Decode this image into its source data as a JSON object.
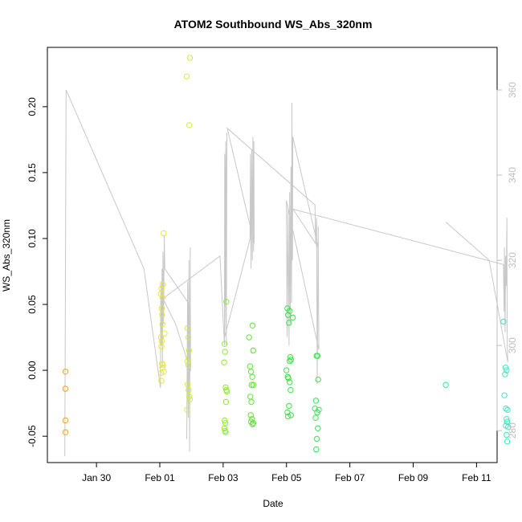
{
  "chart_data": {
    "type": "scatter",
    "title": "ATOM2 Southbound WS_Abs_320nm",
    "xlabel": "Date",
    "ylabel": "WS_Abs_320nm",
    "x_ticks": [
      "Jan 30",
      "Feb 01",
      "Feb 03",
      "Feb 05",
      "Feb 07",
      "Feb 09",
      "Feb 11"
    ],
    "x_tick_values": [
      30,
      32,
      34,
      36,
      38,
      40,
      42
    ],
    "xlim": [
      28.45,
      42.65
    ],
    "y_ticks": [
      -0.05,
      0.0,
      0.05,
      0.1,
      0.15,
      0.2
    ],
    "y_tick_labels": [
      "-0.05",
      "0.00",
      "0.05",
      "0.10",
      "0.15",
      "0.20"
    ],
    "ylim": [
      -0.07,
      0.245
    ],
    "y2_ticks": [
      280,
      300,
      320,
      340,
      360
    ],
    "y2_tick_labels": [
      "280",
      "300",
      "320",
      "340",
      "360"
    ],
    "y2lim": [
      272.5,
      370
    ],
    "grid": false,
    "legend": "none",
    "point_color_by_x": {
      "start": "#e8a03c",
      "mid": "#e6f03c",
      "mid2": "#3ce03c",
      "end": "#3ce8c0"
    },
    "line_color": "#c8c8c8",
    "points": [
      {
        "x": 29.02,
        "y": -0.001
      },
      {
        "x": 29.02,
        "y": -0.014
      },
      {
        "x": 29.02,
        "y": -0.038
      },
      {
        "x": 29.02,
        "y": -0.047
      },
      {
        "x": 32.03,
        "y": 0.058
      },
      {
        "x": 32.05,
        "y": 0.062
      },
      {
        "x": 32.06,
        "y": 0.047
      },
      {
        "x": 32.07,
        "y": 0.042
      },
      {
        "x": 32.08,
        "y": 0.035
      },
      {
        "x": 32.04,
        "y": 0.025
      },
      {
        "x": 32.05,
        "y": 0.018
      },
      {
        "x": 32.06,
        "y": 0.022
      },
      {
        "x": 32.07,
        "y": 0.005
      },
      {
        "x": 32.08,
        "y": 0.002
      },
      {
        "x": 32.04,
        "y": -0.002
      },
      {
        "x": 32.05,
        "y": -0.008
      },
      {
        "x": 32.1,
        "y": 0.065
      },
      {
        "x": 32.12,
        "y": 0.104
      },
      {
        "x": 32.09,
        "y": 0.055
      },
      {
        "x": 32.1,
        "y": 0.004
      },
      {
        "x": 32.15,
        "y": 0.028
      },
      {
        "x": 32.13,
        "y": -0.001
      },
      {
        "x": 32.85,
        "y": 0.223
      },
      {
        "x": 32.95,
        "y": 0.237
      },
      {
        "x": 32.93,
        "y": 0.186
      },
      {
        "x": 32.88,
        "y": 0.032
      },
      {
        "x": 32.9,
        "y": 0.025
      },
      {
        "x": 32.92,
        "y": 0.015
      },
      {
        "x": 32.87,
        "y": 0.007
      },
      {
        "x": 32.9,
        "y": 0.004
      },
      {
        "x": 32.88,
        "y": -0.011
      },
      {
        "x": 32.91,
        "y": -0.015
      },
      {
        "x": 32.93,
        "y": -0.02
      },
      {
        "x": 32.86,
        "y": -0.03
      },
      {
        "x": 32.95,
        "y": -0.022
      },
      {
        "x": 34.1,
        "y": 0.052
      },
      {
        "x": 34.05,
        "y": 0.02
      },
      {
        "x": 34.06,
        "y": 0.014
      },
      {
        "x": 34.03,
        "y": 0.006
      },
      {
        "x": 34.08,
        "y": -0.013
      },
      {
        "x": 34.1,
        "y": -0.015
      },
      {
        "x": 34.12,
        "y": -0.016
      },
      {
        "x": 34.09,
        "y": -0.024
      },
      {
        "x": 34.05,
        "y": -0.038
      },
      {
        "x": 34.07,
        "y": -0.04
      },
      {
        "x": 34.04,
        "y": -0.044
      },
      {
        "x": 34.06,
        "y": -0.046
      },
      {
        "x": 34.08,
        "y": -0.047
      },
      {
        "x": 34.82,
        "y": 0.025
      },
      {
        "x": 34.93,
        "y": 0.034
      },
      {
        "x": 34.95,
        "y": 0.015
      },
      {
        "x": 34.85,
        "y": 0.003
      },
      {
        "x": 34.88,
        "y": -0.001
      },
      {
        "x": 34.92,
        "y": -0.005
      },
      {
        "x": 34.96,
        "y": -0.011
      },
      {
        "x": 34.9,
        "y": -0.011
      },
      {
        "x": 34.86,
        "y": -0.02
      },
      {
        "x": 34.89,
        "y": -0.024
      },
      {
        "x": 34.87,
        "y": -0.034
      },
      {
        "x": 34.91,
        "y": -0.037
      },
      {
        "x": 34.88,
        "y": -0.039
      },
      {
        "x": 34.93,
        "y": -0.041
      },
      {
        "x": 34.95,
        "y": -0.04
      },
      {
        "x": 36.03,
        "y": 0.047
      },
      {
        "x": 36.1,
        "y": 0.045
      },
      {
        "x": 36.05,
        "y": 0.042
      },
      {
        "x": 36.2,
        "y": 0.04
      },
      {
        "x": 36.08,
        "y": 0.036
      },
      {
        "x": 36.12,
        "y": 0.01
      },
      {
        "x": 36.14,
        "y": 0.008
      },
      {
        "x": 36.1,
        "y": 0.007
      },
      {
        "x": 36.0,
        "y": 0.0
      },
      {
        "x": 36.04,
        "y": -0.005
      },
      {
        "x": 36.06,
        "y": -0.006
      },
      {
        "x": 36.1,
        "y": -0.009
      },
      {
        "x": 36.13,
        "y": -0.015
      },
      {
        "x": 36.08,
        "y": -0.027
      },
      {
        "x": 36.03,
        "y": -0.032
      },
      {
        "x": 36.05,
        "y": -0.035
      },
      {
        "x": 36.14,
        "y": -0.034
      },
      {
        "x": 36.95,
        "y": 0.011
      },
      {
        "x": 36.98,
        "y": 0.011
      },
      {
        "x": 37.0,
        "y": -0.007
      },
      {
        "x": 36.93,
        "y": -0.023
      },
      {
        "x": 36.9,
        "y": -0.029
      },
      {
        "x": 36.97,
        "y": -0.032
      },
      {
        "x": 37.02,
        "y": -0.03
      },
      {
        "x": 36.92,
        "y": -0.036
      },
      {
        "x": 36.99,
        "y": -0.044
      },
      {
        "x": 36.96,
        "y": -0.052
      },
      {
        "x": 36.94,
        "y": -0.06
      },
      {
        "x": 41.03,
        "y": -0.011
      },
      {
        "x": 42.85,
        "y": 0.037
      },
      {
        "x": 42.92,
        "y": 0.002
      },
      {
        "x": 42.95,
        "y": 0.0
      },
      {
        "x": 42.9,
        "y": -0.003
      },
      {
        "x": 42.88,
        "y": -0.019
      },
      {
        "x": 42.93,
        "y": -0.029
      },
      {
        "x": 42.98,
        "y": -0.03
      },
      {
        "x": 42.95,
        "y": -0.037
      },
      {
        "x": 42.97,
        "y": -0.039
      },
      {
        "x": 42.93,
        "y": -0.042
      },
      {
        "x": 43.0,
        "y": -0.043
      },
      {
        "x": 42.95,
        "y": -0.049
      },
      {
        "x": 42.97,
        "y": -0.054
      }
    ],
    "line_y2": [
      {
        "x": 29.0,
        "y": 274
      },
      {
        "x": 29.04,
        "y": 360
      },
      {
        "x": 31.5,
        "y": 318
      },
      {
        "x": 32.02,
        "y": 290
      },
      {
        "x": 32.03,
        "y": 315
      },
      {
        "x": 32.05,
        "y": 300
      },
      {
        "x": 32.07,
        "y": 318
      },
      {
        "x": 32.08,
        "y": 295
      },
      {
        "x": 32.1,
        "y": 322
      },
      {
        "x": 32.12,
        "y": 305
      },
      {
        "x": 32.14,
        "y": 326
      },
      {
        "x": 32.16,
        "y": 318
      },
      {
        "x": 32.9,
        "y": 310
      },
      {
        "x": 32.85,
        "y": 278
      },
      {
        "x": 32.88,
        "y": 315
      },
      {
        "x": 32.9,
        "y": 283
      },
      {
        "x": 32.92,
        "y": 320
      },
      {
        "x": 32.94,
        "y": 275
      },
      {
        "x": 32.96,
        "y": 323
      },
      {
        "x": 32.97,
        "y": 294
      },
      {
        "x": 32.5,
        "y": 305
      },
      {
        "x": 32.1,
        "y": 311
      },
      {
        "x": 33.9,
        "y": 321
      },
      {
        "x": 34.04,
        "y": 300
      },
      {
        "x": 34.05,
        "y": 345
      },
      {
        "x": 34.07,
        "y": 310
      },
      {
        "x": 34.08,
        "y": 348
      },
      {
        "x": 34.1,
        "y": 300
      },
      {
        "x": 34.12,
        "y": 350
      },
      {
        "x": 34.05,
        "y": 302
      },
      {
        "x": 34.85,
        "y": 325
      },
      {
        "x": 34.86,
        "y": 345
      },
      {
        "x": 34.88,
        "y": 318
      },
      {
        "x": 34.9,
        "y": 346
      },
      {
        "x": 34.92,
        "y": 320
      },
      {
        "x": 34.94,
        "y": 349
      },
      {
        "x": 34.96,
        "y": 322
      },
      {
        "x": 34.97,
        "y": 348
      },
      {
        "x": 34.98,
        "y": 324
      },
      {
        "x": 34.13,
        "y": 351
      },
      {
        "x": 36.9,
        "y": 333
      },
      {
        "x": 36.92,
        "y": 324
      },
      {
        "x": 36.95,
        "y": 330
      },
      {
        "x": 36.97,
        "y": 291
      },
      {
        "x": 37.0,
        "y": 328
      },
      {
        "x": 37.02,
        "y": 299
      },
      {
        "x": 36.0,
        "y": 334
      },
      {
        "x": 36.02,
        "y": 302
      },
      {
        "x": 36.05,
        "y": 332
      },
      {
        "x": 36.08,
        "y": 300
      },
      {
        "x": 36.1,
        "y": 336
      },
      {
        "x": 36.12,
        "y": 305
      },
      {
        "x": 36.14,
        "y": 342
      },
      {
        "x": 36.16,
        "y": 310
      },
      {
        "x": 36.17,
        "y": 357
      },
      {
        "x": 36.19,
        "y": 320
      },
      {
        "x": 36.2,
        "y": 349
      },
      {
        "x": 37.0,
        "y": 323
      },
      {
        "x": 36.21,
        "y": 332
      },
      {
        "x": 42.85,
        "y": 319
      },
      {
        "x": 42.87,
        "y": 308
      },
      {
        "x": 42.88,
        "y": 323
      },
      {
        "x": 42.9,
        "y": 303
      },
      {
        "x": 42.92,
        "y": 321
      },
      {
        "x": 42.94,
        "y": 314
      },
      {
        "x": 42.96,
        "y": 330
      },
      {
        "x": 42.97,
        "y": 300
      },
      {
        "x": 42.99,
        "y": 296
      },
      {
        "x": 42.4,
        "y": 320
      },
      {
        "x": 41.03,
        "y": 329
      }
    ]
  }
}
